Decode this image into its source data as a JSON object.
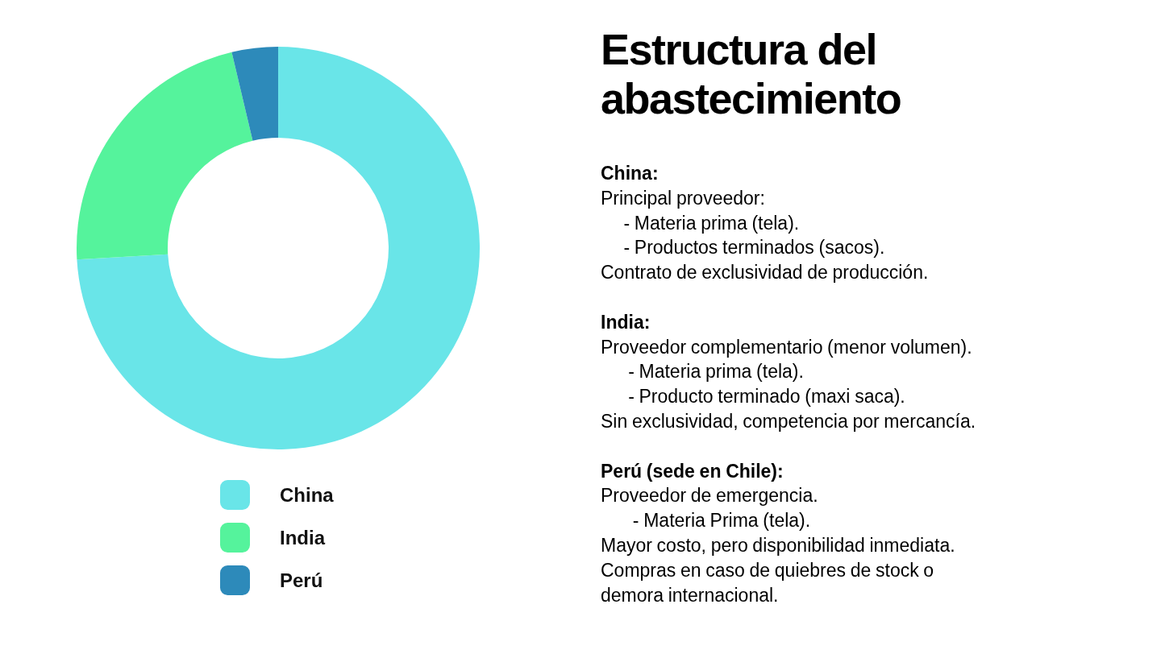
{
  "chart_data": {
    "type": "donut",
    "title": "Estructura del abastecimiento",
    "categories": [
      "China",
      "India",
      "Perú"
    ],
    "values": [
      74.1,
      22.2,
      3.7
    ],
    "colors": [
      "#69e5e8",
      "#55f39c",
      "#2d8aba"
    ],
    "legend": "bottom",
    "annotations": [
      "China:\nPrincipal proveedor:\n     - Materia prima (tela).\n     - Productos terminados (sacos).\nContrato de exclusividad de producción.",
      "India:\nProveedor complementario (menor volumen).\n      - Materia prima (tela).\n      - Producto terminado (maxi saca).\nSin exclusividad, competencia por mercancía.",
      "Perú (sede en Chile):\nProveedor de emergencia.\n       - Materia Prima (tela).\nMayor costo, pero disponibilidad inmediata.\nCompras en caso de quiebres de stock o demora internacional."
    ]
  }
}
